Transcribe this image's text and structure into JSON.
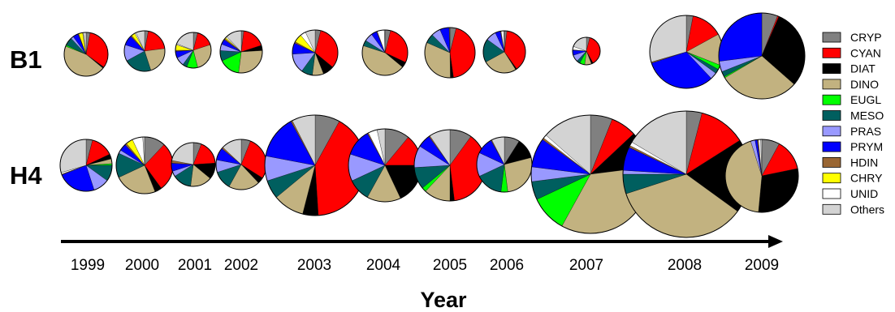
{
  "chart_data": {
    "type": "pie",
    "xlabel": "Year",
    "years": [
      "1999",
      "2000",
      "2001",
      "2002",
      "2003",
      "2004",
      "2005",
      "2006",
      "2007",
      "2008",
      "2009"
    ],
    "rows": [
      "B1",
      "H4"
    ],
    "categories": [
      "CRYP",
      "CYAN",
      "DIAT",
      "DINO",
      "EUGL",
      "MESO",
      "PRAS",
      "PRYM",
      "HDIN",
      "CHRY",
      "UNID",
      "Others"
    ],
    "colors": {
      "CRYP": "#808080",
      "CYAN": "#ff0000",
      "DIAT": "#000000",
      "DINO": "#c2b280",
      "EUGL": "#00ff00",
      "MESO": "#005f5f",
      "PRAS": "#9999ff",
      "PRYM": "#0000ff",
      "HDIN": "#996633",
      "CHRY": "#ffff00",
      "UNID": "#ffffff",
      "Others": "#d3d3d3"
    },
    "legend_position": "right",
    "pies": [
      {
        "row": "B1",
        "year": "1999",
        "slices": [
          3,
          32,
          1,
          45,
          1,
          6,
          2,
          4,
          0.5,
          3,
          0.5,
          2
        ]
      },
      {
        "row": "B1",
        "year": "2000",
        "slices": [
          3,
          20,
          0,
          22,
          0,
          22,
          13,
          8,
          1,
          3,
          1,
          7
        ]
      },
      {
        "row": "B1",
        "year": "2001",
        "slices": [
          4,
          16,
          0,
          26,
          10,
          4,
          8,
          6,
          1,
          5,
          1,
          19
        ]
      },
      {
        "row": "B1",
        "year": "2002",
        "slices": [
          2,
          18,
          4,
          28,
          16,
          8,
          5,
          4,
          1,
          1,
          1,
          12
        ]
      },
      {
        "row": "B1",
        "year": "2003",
        "slices": [
          4,
          32,
          8,
          8,
          0,
          8,
          14,
          8,
          1,
          6,
          4,
          7
        ]
      },
      {
        "row": "B1",
        "year": "2004",
        "slices": [
          4,
          28,
          4,
          44,
          0,
          4,
          6,
          4,
          0.5,
          0,
          5,
          0.5
        ]
      },
      {
        "row": "B1",
        "year": "2005",
        "slices": [
          4,
          44,
          2,
          32,
          0,
          6,
          6,
          6,
          0.5,
          0,
          0,
          0
        ]
      },
      {
        "row": "B1",
        "year": "2006",
        "slices": [
          2,
          38,
          1,
          26,
          0,
          18,
          8,
          4,
          0.5,
          0,
          2,
          0.5
        ]
      },
      {
        "row": "B1",
        "year": "2007",
        "slices": [
          4,
          38,
          2,
          8,
          6,
          4,
          8,
          6,
          0.5,
          0,
          4,
          19.5
        ]
      },
      {
        "row": "B1",
        "year": "2008",
        "slices": [
          3,
          14,
          0,
          14,
          2,
          2,
          3,
          32,
          0.5,
          0,
          0,
          29.5
        ]
      },
      {
        "row": "B1",
        "year": "2009",
        "slices": [
          6,
          0.5,
          30,
          30,
          0.5,
          2,
          4,
          27,
          0,
          0,
          0,
          0
        ]
      },
      {
        "row": "H4",
        "year": "1999",
        "slices": [
          4,
          14,
          3,
          3,
          1,
          10,
          10,
          24,
          0.5,
          0,
          1,
          29.5
        ]
      },
      {
        "row": "H4",
        "year": "2000",
        "slices": [
          12,
          28,
          4,
          24,
          0,
          14,
          2,
          4,
          1,
          4,
          6,
          1
        ]
      },
      {
        "row": "H4",
        "year": "2001",
        "slices": [
          6,
          18,
          12,
          16,
          0,
          14,
          4,
          6,
          2,
          0,
          0,
          22
        ]
      },
      {
        "row": "H4",
        "year": "2002",
        "slices": [
          6,
          28,
          4,
          20,
          0,
          12,
          8,
          8,
          1,
          0,
          0,
          13
        ]
      },
      {
        "row": "H4",
        "year": "2003",
        "slices": [
          8,
          41,
          5,
          10,
          0,
          6,
          8,
          14,
          0.5,
          0,
          0,
          7.5
        ]
      },
      {
        "row": "H4",
        "year": "2004",
        "slices": [
          11,
          14,
          18,
          15,
          0,
          10,
          12,
          12,
          0.5,
          0,
          4,
          3.5
        ]
      },
      {
        "row": "H4",
        "year": "2005",
        "slices": [
          10,
          38,
          2,
          12,
          2,
          10,
          10,
          6,
          0.5,
          0,
          0,
          9.5
        ]
      },
      {
        "row": "H4",
        "year": "2006",
        "slices": [
          9,
          0,
          12,
          27,
          4,
          16,
          14,
          10,
          0.5,
          0,
          0,
          7.5
        ]
      },
      {
        "row": "H4",
        "year": "2007",
        "slices": [
          6,
          7,
          10,
          35,
          10,
          5,
          4,
          8,
          0.5,
          0,
          1,
          13.5
        ]
      },
      {
        "row": "H4",
        "year": "2008",
        "slices": [
          4,
          12,
          19,
          35,
          0,
          5,
          1,
          6,
          0.5,
          0,
          1,
          16.5
        ]
      },
      {
        "row": "H4",
        "year": "2009",
        "slices": [
          8,
          14,
          30,
          44,
          0,
          0,
          2,
          1,
          0.5,
          0,
          1,
          0.5
        ]
      }
    ]
  }
}
